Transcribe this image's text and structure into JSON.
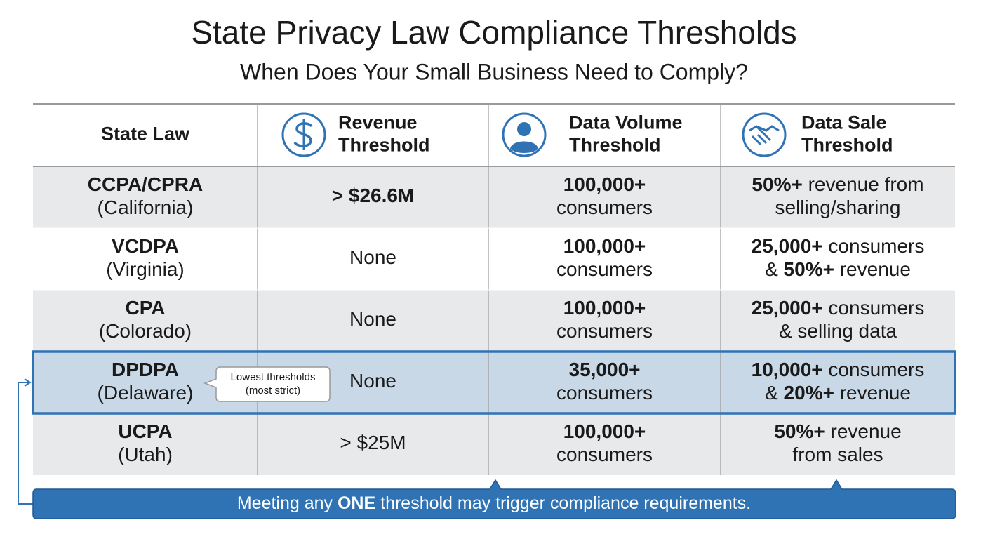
{
  "header": {
    "title": "State Privacy Law Compliance Thresholds",
    "subtitle": "When Does Your Small Business Need to Comply?"
  },
  "table": {
    "columns": [
      [
        "State Law"
      ],
      [
        "Revenue",
        "Threshold"
      ],
      [
        "Data Volume",
        "Threshold"
      ],
      [
        "Data Sale",
        "Threshold"
      ]
    ],
    "rows": [
      {
        "cells": [
          [
            [
              {
                "text": "CCPA/CPRA",
                "bold": true
              }
            ],
            [
              {
                "text": "(California)"
              }
            ]
          ],
          [
            [
              {
                "text": "> $26.6M",
                "bold": true
              }
            ]
          ],
          [
            [
              {
                "text": "100,000+",
                "bold": true
              }
            ],
            [
              {
                "text": "consumers"
              }
            ]
          ],
          [
            [
              {
                "text": "50%+",
                "bold": true
              },
              {
                "text": " revenue from"
              }
            ],
            [
              {
                "text": "selling/sharing"
              }
            ]
          ]
        ]
      },
      {
        "cells": [
          [
            [
              {
                "text": "VCDPA",
                "bold": true
              }
            ],
            [
              {
                "text": "(Virginia)"
              }
            ]
          ],
          [
            [
              {
                "text": "None"
              }
            ]
          ],
          [
            [
              {
                "text": "100,000+",
                "bold": true
              }
            ],
            [
              {
                "text": "consumers"
              }
            ]
          ],
          [
            [
              {
                "text": "25,000+",
                "bold": true
              },
              {
                "text": " consumers"
              }
            ],
            [
              {
                "text": "& "
              },
              {
                "text": "50%+",
                "bold": true
              },
              {
                "text": " revenue"
              }
            ]
          ]
        ]
      },
      {
        "cells": [
          [
            [
              {
                "text": "CPA",
                "bold": true
              }
            ],
            [
              {
                "text": "(Colorado)"
              }
            ]
          ],
          [
            [
              {
                "text": "None"
              }
            ]
          ],
          [
            [
              {
                "text": "100,000+",
                "bold": true
              }
            ],
            [
              {
                "text": "consumers"
              }
            ]
          ],
          [
            [
              {
                "text": "25,000+",
                "bold": true
              },
              {
                "text": " consumers"
              }
            ],
            [
              {
                "text": "& selling data"
              }
            ]
          ]
        ]
      },
      {
        "highlight": true,
        "cells": [
          [
            [
              {
                "text": "DPDPA",
                "bold": true
              }
            ],
            [
              {
                "text": "(Delaware)"
              }
            ]
          ],
          [
            [
              {
                "text": "None"
              }
            ]
          ],
          [
            [
              {
                "text": "35,000+",
                "bold": true
              }
            ],
            [
              {
                "text": "consumers"
              }
            ]
          ],
          [
            [
              {
                "text": "10,000+",
                "bold": true
              },
              {
                "text": " consumers"
              }
            ],
            [
              {
                "text": "& "
              },
              {
                "text": "20%+",
                "bold": true
              },
              {
                "text": " revenue"
              }
            ]
          ]
        ]
      },
      {
        "cells": [
          [
            [
              {
                "text": "UCPA",
                "bold": true
              }
            ],
            [
              {
                "text": "(Utah)"
              }
            ]
          ],
          [
            [
              {
                "text": "> $25M"
              }
            ]
          ],
          [
            [
              {
                "text": "100,000+",
                "bold": true
              }
            ],
            [
              {
                "text": "consumers"
              }
            ]
          ],
          [
            [
              {
                "text": "50%+",
                "bold": true
              },
              {
                "text": " revenue"
              }
            ],
            [
              {
                "text": "from sales"
              }
            ]
          ]
        ]
      }
    ]
  },
  "callout": [
    "Lowest thresholds",
    "(most strict)"
  ],
  "footer": [
    {
      "text": "Meeting any "
    },
    {
      "text": "ONE",
      "bold": true
    },
    {
      "text": " threshold may trigger compliance requirements."
    }
  ]
}
